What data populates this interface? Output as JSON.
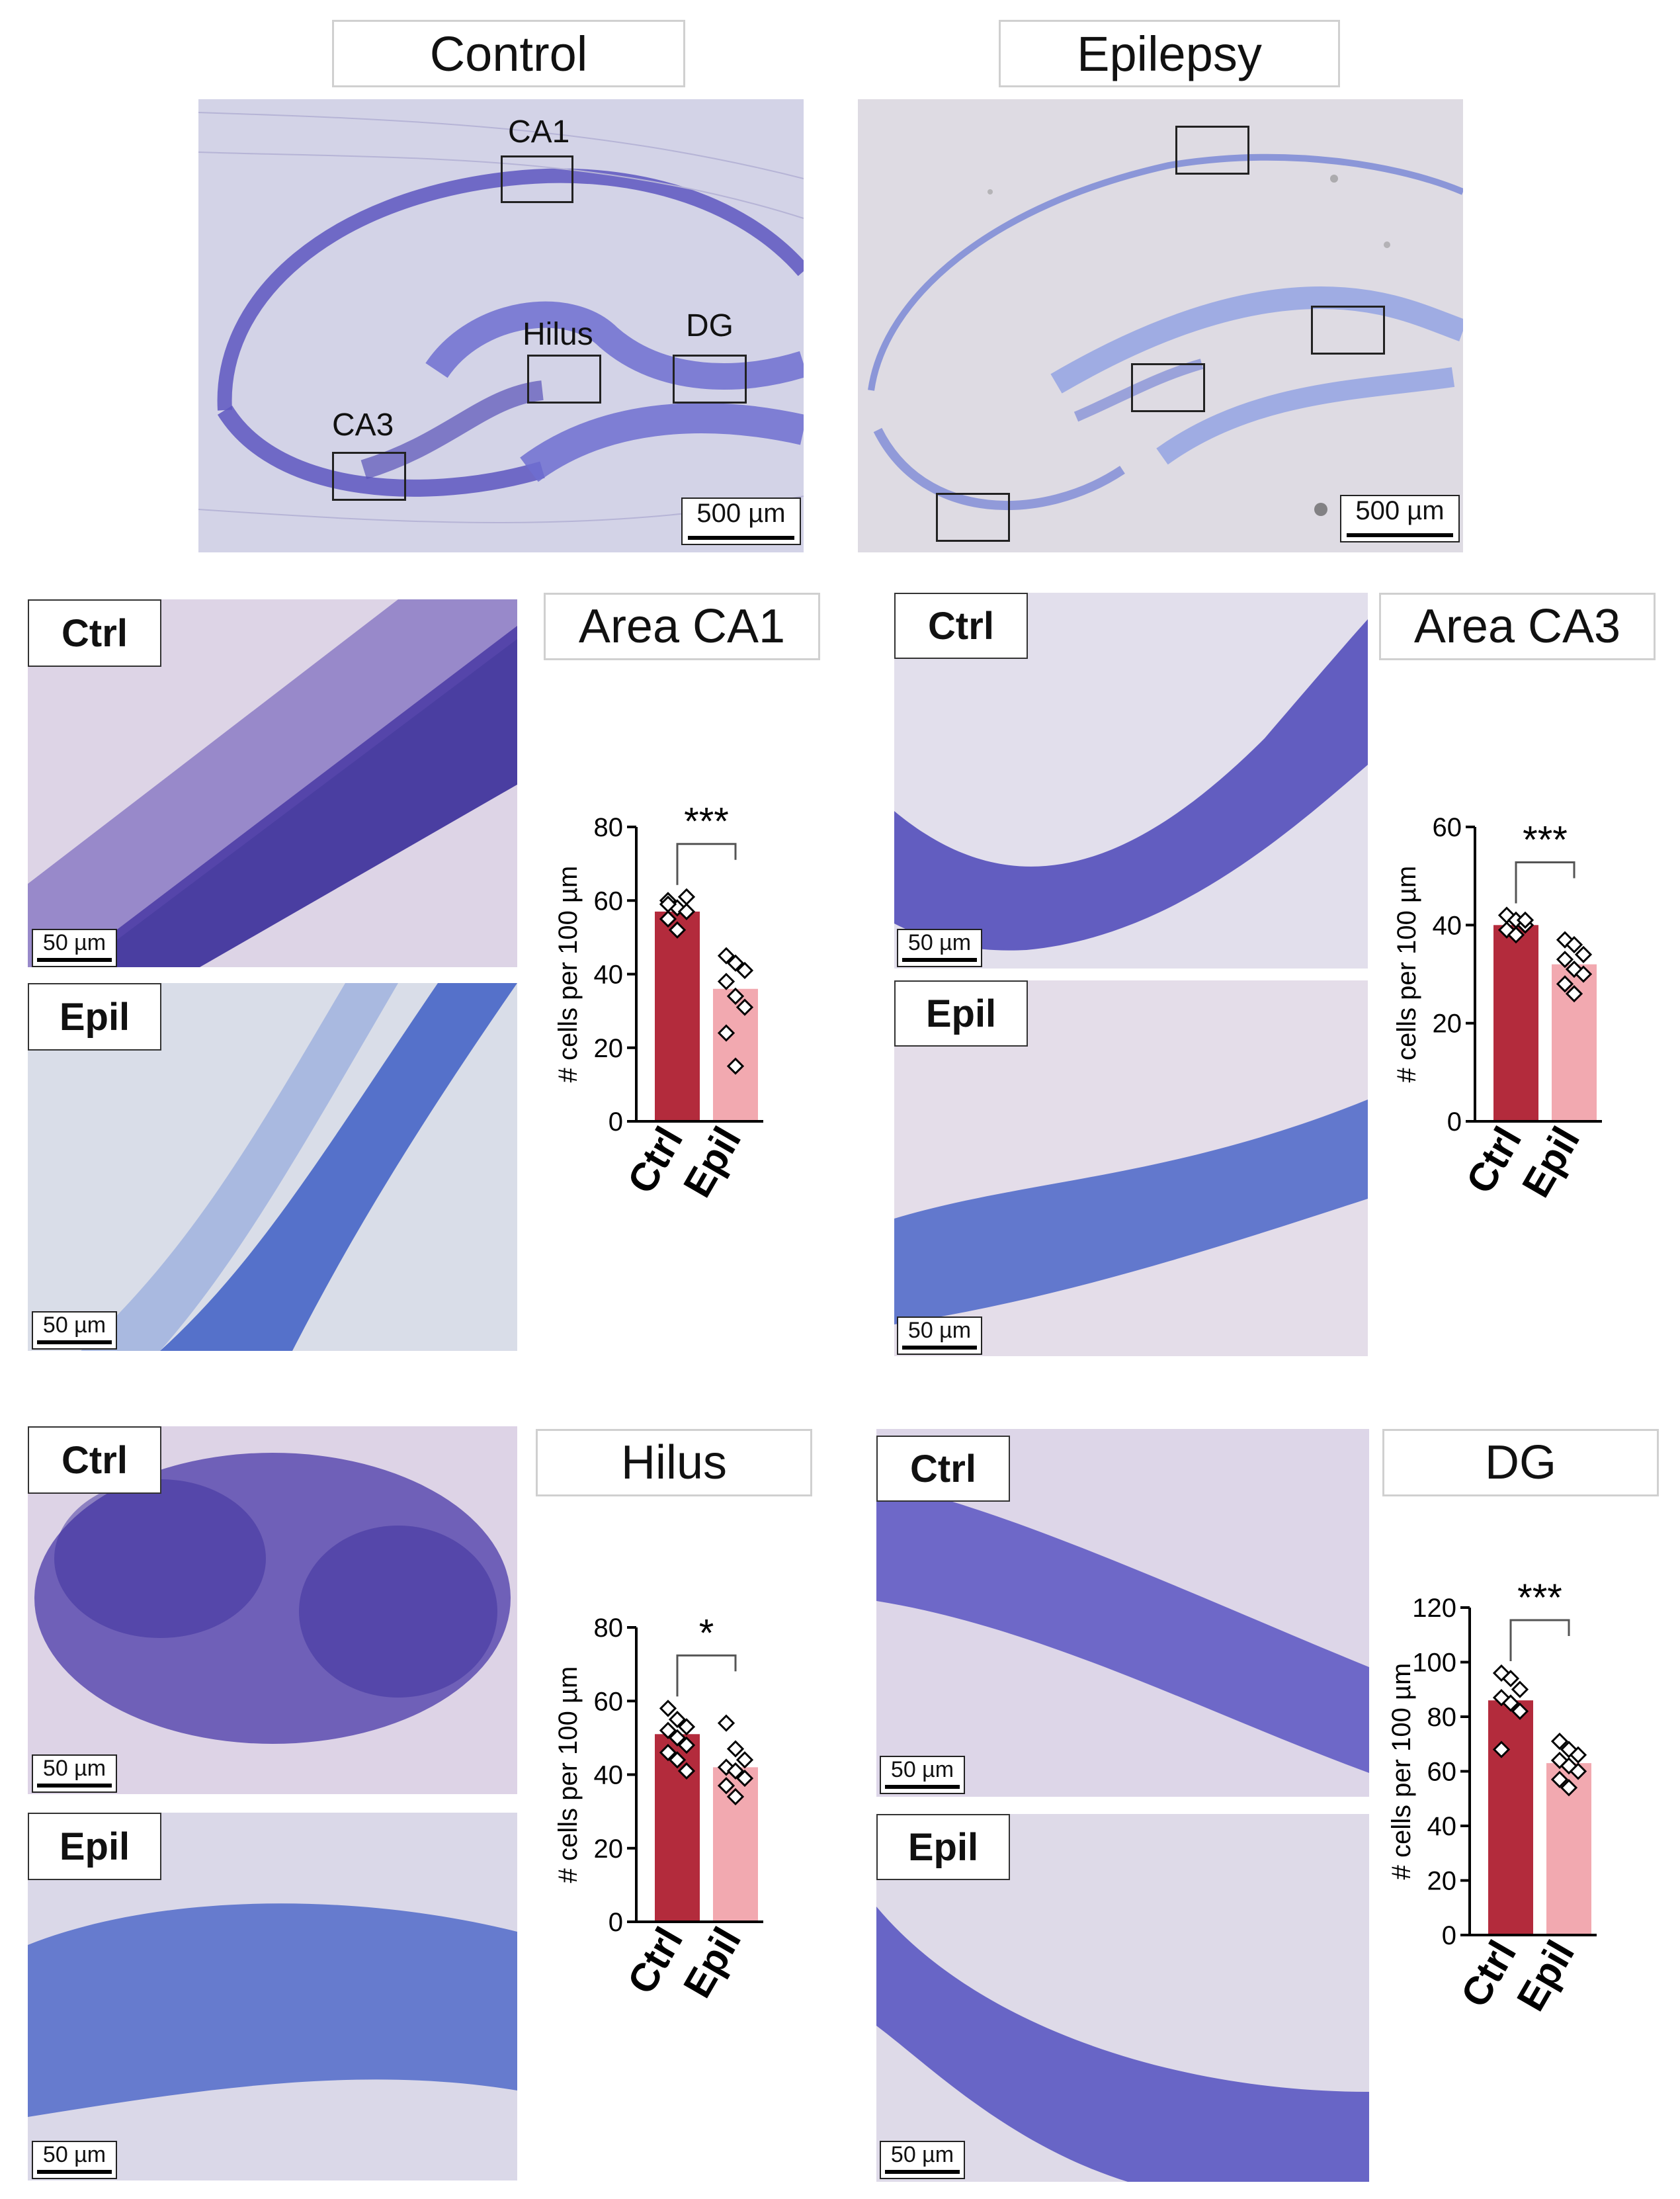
{
  "header": {
    "control_title": "Control",
    "epilepsy_title": "Epilepsy"
  },
  "overview": {
    "control": {
      "labels": {
        "ca1": "CA1",
        "hilus": "Hilus",
        "dg": "DG",
        "ca3": "CA3"
      },
      "scale": "500 µm"
    },
    "epilepsy": {
      "scale": "500 µm"
    }
  },
  "panels": {
    "ca1": {
      "title": "Area CA1",
      "ctrl_tag": "Ctrl",
      "epil_tag": "Epil",
      "scale": "50 µm"
    },
    "ca3": {
      "title": "Area CA3",
      "ctrl_tag": "Ctrl",
      "epil_tag": "Epil",
      "scale": "50 µm"
    },
    "hilus": {
      "title": "Hilus",
      "ctrl_tag": "Ctrl",
      "epil_tag": "Epil",
      "scale": "50 µm"
    },
    "dg": {
      "title": "DG",
      "ctrl_tag": "Ctrl",
      "epil_tag": "Epil",
      "scale": "50 µm"
    }
  },
  "colors": {
    "ctrl_bar": "#b32b3c",
    "epil_bar": "#f2a9b0",
    "nissl_dark": "#3d2f9e",
    "nissl_light": "#5a7ad0",
    "tissue_bg": "#d9d6e6"
  },
  "chart_data": [
    {
      "id": "ca1",
      "type": "bar",
      "categories": [
        "Ctrl",
        "Epil"
      ],
      "values": [
        57,
        36
      ],
      "points": [
        [
          60,
          58,
          61,
          55,
          52,
          57,
          59
        ],
        [
          45,
          43,
          41,
          38,
          34,
          31,
          24,
          15
        ]
      ],
      "ylabel": "# cells per  100 µm",
      "ylim": [
        0,
        80
      ],
      "yticks": [
        0,
        20,
        40,
        60,
        80
      ],
      "significance": "***"
    },
    {
      "id": "ca3",
      "type": "bar",
      "categories": [
        "Ctrl",
        "Epil"
      ],
      "values": [
        40,
        32
      ],
      "points": [
        [
          42,
          41,
          40,
          39,
          38,
          41
        ],
        [
          37,
          36,
          34,
          33,
          31,
          30,
          28,
          26
        ]
      ],
      "ylabel": "# cells per  100 µm",
      "ylim": [
        0,
        60
      ],
      "yticks": [
        0,
        20,
        40,
        60
      ],
      "significance": "***"
    },
    {
      "id": "hilus",
      "type": "bar",
      "categories": [
        "Ctrl",
        "Epil"
      ],
      "values": [
        51,
        42
      ],
      "points": [
        [
          58,
          55,
          53,
          52,
          50,
          48,
          46,
          44,
          41
        ],
        [
          54,
          47,
          44,
          42,
          41,
          39,
          37,
          34
        ]
      ],
      "ylabel": "# cells per  100 µm",
      "ylim": [
        0,
        80
      ],
      "yticks": [
        0,
        20,
        40,
        60,
        80
      ],
      "significance": "*"
    },
    {
      "id": "dg",
      "type": "bar",
      "categories": [
        "Ctrl",
        "Epil"
      ],
      "values": [
        86,
        63
      ],
      "points": [
        [
          96,
          94,
          90,
          87,
          85,
          82,
          68
        ],
        [
          71,
          68,
          66,
          64,
          62,
          60,
          57,
          54
        ]
      ],
      "ylabel": "# cells per  100 µm",
      "ylim": [
        0,
        120
      ],
      "yticks": [
        0,
        20,
        40,
        60,
        80,
        100,
        120
      ],
      "significance": "***"
    }
  ]
}
